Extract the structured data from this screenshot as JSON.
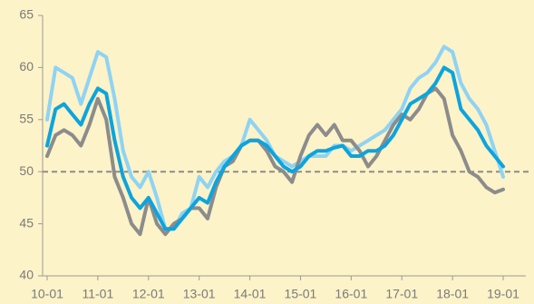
{
  "chart_data": {
    "type": "line",
    "categories": [
      "10-01",
      null,
      null,
      null,
      null,
      null,
      "11-01",
      null,
      null,
      null,
      null,
      null,
      "12-01",
      null,
      null,
      null,
      null,
      null,
      "13-01",
      null,
      null,
      null,
      null,
      null,
      "14-01",
      null,
      null,
      null,
      null,
      null,
      "15-01",
      null,
      null,
      null,
      null,
      null,
      "16-01",
      null,
      null,
      null,
      null,
      null,
      "17-01",
      null,
      null,
      null,
      null,
      null,
      "18-01",
      null,
      null,
      null,
      null,
      null,
      "19-01"
    ],
    "series": [
      {
        "color": "#8fd3f4",
        "values": [
          55,
          60,
          59.5,
          59,
          56.5,
          59,
          61.5,
          61,
          57,
          52,
          49.5,
          48.5,
          50,
          47.5,
          44.5,
          44.5,
          46,
          46.5,
          49.5,
          48.5,
          50,
          51,
          51.5,
          52.5,
          55,
          54,
          53,
          51.5,
          51,
          50.5,
          51,
          51.5,
          51.5,
          51.5,
          52.5,
          52.5,
          52,
          52.5,
          53,
          53.5,
          54,
          55,
          56,
          58,
          59,
          59.5,
          60.5,
          62,
          61.5,
          58.5,
          57,
          56,
          54.5,
          52,
          49.5
        ]
      },
      {
        "color": "#8c8c8c",
        "values": [
          51.5,
          53.5,
          54,
          53.5,
          52.5,
          54.5,
          57,
          55,
          49.5,
          47.5,
          45,
          44,
          47.5,
          45,
          44,
          45,
          45.5,
          46.5,
          46.5,
          45.5,
          48.5,
          50.5,
          51,
          52.5,
          53,
          53,
          52,
          50.5,
          50,
          49,
          51.5,
          53.5,
          54.5,
          53.5,
          54.5,
          53,
          53,
          52,
          50.5,
          51.5,
          53,
          54.5,
          55.5,
          55,
          56,
          57.5,
          58,
          57,
          53.5,
          52,
          50,
          49.5,
          48.5,
          48,
          48.3
        ]
      },
      {
        "color": "#0ca4df",
        "values": [
          52.5,
          56,
          56.5,
          55.5,
          54.5,
          56.5,
          58,
          57.5,
          53,
          49.5,
          47.5,
          46.5,
          47.5,
          46,
          44.5,
          44.5,
          45.5,
          46.5,
          47.5,
          47,
          49,
          50.5,
          51.5,
          52.5,
          53,
          53,
          52.5,
          51.5,
          50.5,
          50,
          50.5,
          51.5,
          52,
          52,
          52.3,
          52.5,
          51.5,
          51.5,
          52,
          52,
          52.5,
          53.5,
          55,
          56.5,
          57,
          57.5,
          58.5,
          60,
          59.5,
          56,
          55,
          54,
          52.5,
          51.5,
          50.5
        ]
      }
    ],
    "ylim": [
      40,
      65
    ],
    "yticks": [
      40,
      45,
      50,
      55,
      60,
      65
    ],
    "reference_line": 50,
    "grid": false
  }
}
